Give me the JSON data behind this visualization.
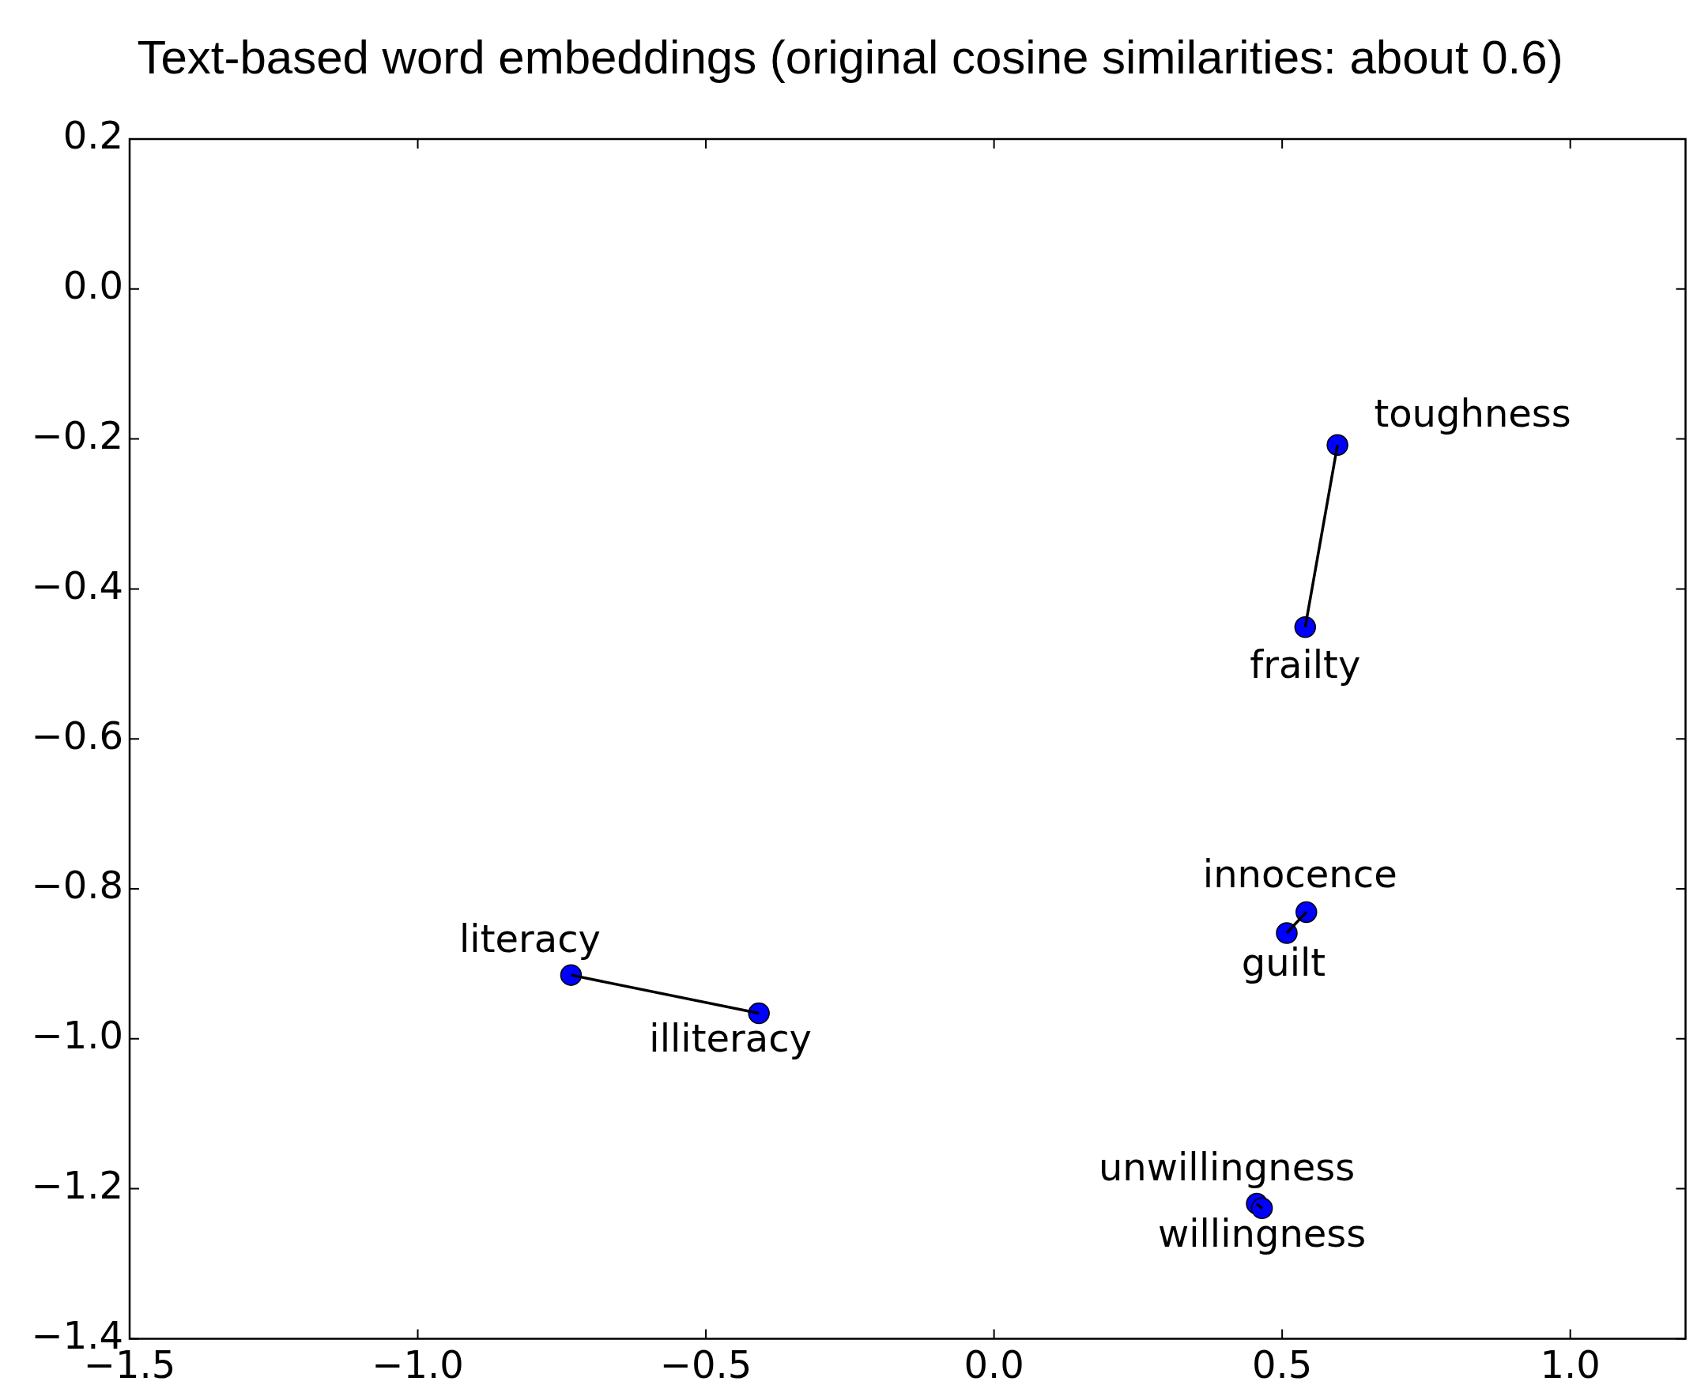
{
  "chart_data": {
    "type": "scatter",
    "title": "Text-based word embeddings (original cosine similarities: about 0.6)",
    "xlim": [
      -1.5,
      1.2
    ],
    "xticks": [
      {
        "value": -1.5,
        "label": "−1.5"
      },
      {
        "value": -1.0,
        "label": "−1.0"
      },
      {
        "value": -0.5,
        "label": "−0.5"
      },
      {
        "value": 0,
        "label": "0.0"
      },
      {
        "value": 0.5,
        "label": "0.5"
      },
      {
        "value": 1.0,
        "label": "1.0"
      }
    ],
    "ylim": [
      -1.4,
      0.2
    ],
    "yticks": [
      {
        "value": -1.4,
        "label": "−1.4"
      },
      {
        "value": -1.2,
        "label": "−1.2"
      },
      {
        "value": -1.0,
        "label": "−1.0"
      },
      {
        "value": -0.8,
        "label": "−0.8"
      },
      {
        "value": -0.6,
        "label": "−0.6"
      },
      {
        "value": -0.4,
        "label": "−0.4"
      },
      {
        "value": -0.2,
        "label": "−0.2"
      },
      {
        "value": 0,
        "label": "0.0"
      },
      {
        "value": 0.2,
        "label": "0.2"
      }
    ],
    "series": [
      {
        "type": "line",
        "color": "#000000",
        "marker": "none",
        "x": [
          0.596,
          0.54
        ],
        "values": [
          -0.208,
          -0.451
        ]
      },
      {
        "type": "line",
        "color": "#000000",
        "marker": "none",
        "x": [
          0.542,
          0.508
        ],
        "values": [
          -0.831,
          -0.859
        ]
      },
      {
        "type": "line",
        "color": "#000000",
        "marker": "none",
        "x": [
          -0.734,
          -0.408
        ],
        "values": [
          -0.915,
          -0.966
        ]
      },
      {
        "type": "line",
        "color": "#000000",
        "marker": "none",
        "x": [
          0.456,
          0.465
        ],
        "values": [
          -1.22,
          -1.226
        ]
      },
      {
        "color": "#0000ff",
        "marker": "circle",
        "x": [
          0.596,
          0.54,
          0.542,
          0.508,
          -0.734,
          -0.408,
          0.456,
          0.465
        ],
        "values": [
          -0.208,
          -0.451,
          -0.831,
          -0.859,
          -0.915,
          -0.966,
          -1.22,
          -1.226
        ]
      }
    ],
    "annotations": [
      {
        "text": "toughness",
        "x": 0.596,
        "y": -0.208
      },
      {
        "text": "frailty",
        "x": 0.54,
        "y": -0.451
      },
      {
        "text": "innocence",
        "x": 0.542,
        "y": -0.831
      },
      {
        "text": "guilt",
        "x": 0.508,
        "y": -0.859
      },
      {
        "text": "literacy",
        "x": -0.734,
        "y": -0.915
      },
      {
        "text": "illiteracy",
        "x": -0.408,
        "y": -0.966
      },
      {
        "text": "unwillingness",
        "x": 0.456,
        "y": -1.22
      },
      {
        "text": "willingness",
        "x": 0.465,
        "y": -1.226
      }
    ]
  }
}
